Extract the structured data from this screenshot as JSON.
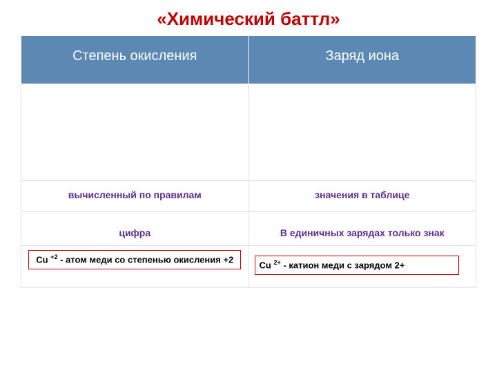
{
  "title": "«Химический баттл»",
  "table": {
    "header": {
      "col1": "Степень окисления",
      "col2": "Заряд иона"
    },
    "row_purple1": {
      "col1": "вычисленный по правилам",
      "col2": "значения в таблице"
    },
    "row_purple2": {
      "col1": "цифра",
      "col2": "В единичных зарядах только знак"
    },
    "examples": {
      "left_prefix": "Cu ",
      "left_sup": "+2",
      "left_rest": " - атом меди со степенью окисления +2",
      "right_prefix": "Cu ",
      "right_sup": "2+",
      "right_rest": " - катион меди с зарядом 2+"
    }
  },
  "colors": {
    "title": "#c00000",
    "header_bg": "#5b89b4",
    "header_text": "#ffffff",
    "purple_text": "#5b2d8e",
    "box_border": "#c00000",
    "grid": "#e0e0e0"
  }
}
